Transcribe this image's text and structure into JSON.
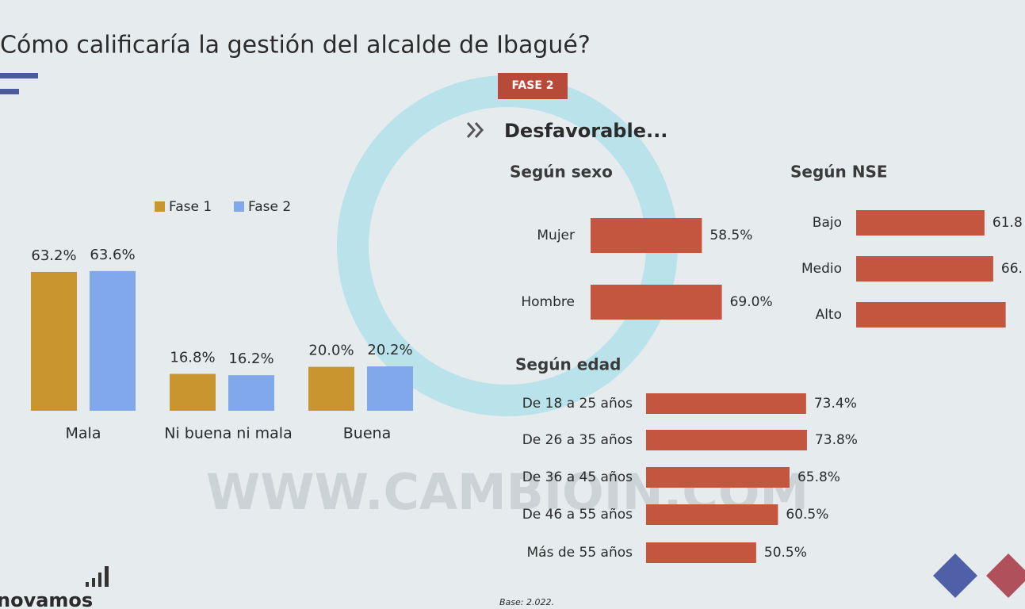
{
  "title": "Cómo calificaría la gestión del alcalde de Ibagué?",
  "phase_tag": "FASE 2",
  "subtitle": "Desfavorable...",
  "base_note": "Base: 2.022.",
  "logo": "novamos",
  "watermark": "WWW.CAMBIOIN.COM",
  "chart_data": [
    {
      "type": "bar",
      "categories": [
        "Mala",
        "Ni buena ni mala",
        "Buena"
      ],
      "series": [
        {
          "name": "Fase 1",
          "color": "#c8952e",
          "values": [
            63.2,
            16.8,
            20.0
          ],
          "value_labels": [
            "63.2%",
            "16.8%",
            "20.0%"
          ]
        },
        {
          "name": "Fase 2",
          "color": "#80a8ea",
          "values": [
            63.6,
            16.2,
            20.2
          ],
          "value_labels": [
            "63.6%",
            "16.2%",
            "20.2%"
          ]
        }
      ]
    },
    {
      "type": "barh",
      "title": "Según sexo",
      "color": "#c4553f",
      "categories": [
        "Mujer",
        "Hombre"
      ],
      "values": [
        58.5,
        69.0
      ],
      "value_labels": [
        "58.5%",
        "69.0%"
      ]
    },
    {
      "type": "barh",
      "title": "Según NSE",
      "color": "#c4553f",
      "categories": [
        "Bajo",
        "Medio",
        "Alto"
      ],
      "values": [
        61.8,
        66,
        72
      ],
      "value_labels": [
        "61.8",
        "66.",
        null
      ]
    },
    {
      "type": "barh",
      "title": "Según edad",
      "color": "#c4553f",
      "categories": [
        "De 18 a 25 años",
        "De 26 a 35 años",
        "De 36 a 45 años",
        "De 46 a 55 años",
        "Más de 55 años"
      ],
      "values": [
        73.4,
        73.8,
        65.8,
        60.5,
        50.5
      ],
      "value_labels": [
        "73.4%",
        "73.8%",
        "65.8%",
        "60.5%",
        "50.5%"
      ]
    }
  ]
}
